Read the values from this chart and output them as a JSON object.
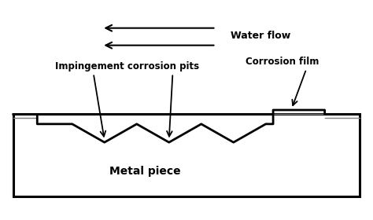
{
  "bg_color": "#ffffff",
  "water_flow_label": "Water flow",
  "label_impingement": "Impingement corrosion pits",
  "label_corrosion_film": "Corrosion film",
  "label_metal_piece": "Metal piece"
}
